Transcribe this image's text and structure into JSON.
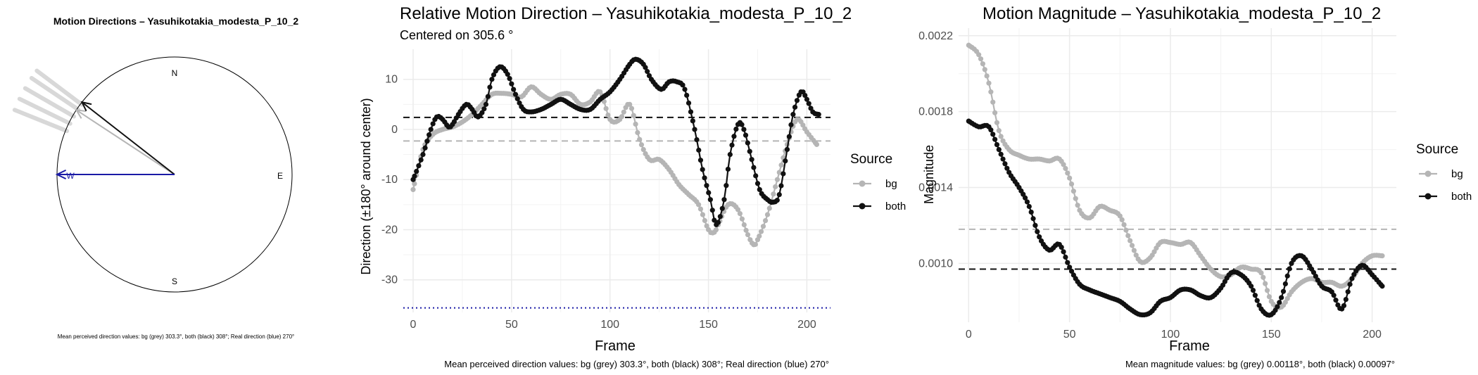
{
  "colors": {
    "bg_series": "#b5b5b5",
    "both_series": "#111111",
    "real_direction": "#1a1aa6",
    "grid": "#ebebeb",
    "compass_ray": "#d8d8d8"
  },
  "chart_data": [
    {
      "type": "compass",
      "title": "Motion Directions – Yasuhikotakia_modesta_P_10_2",
      "cardinals": {
        "n": "N",
        "e": "E",
        "s": "S",
        "w": "W"
      },
      "footer": "Mean perceived direction values: bg (grey) 303.3°, both (black) 308°; Real direction (blue) 270°",
      "mean_bg_deg": 303.3,
      "mean_both_deg": 308,
      "real_deg": 270,
      "rays_deg": [
        292,
        296,
        300,
        304,
        307
      ]
    },
    {
      "type": "line",
      "title": "Relative Motion Direction – Yasuhikotakia_modesta_P_10_2",
      "subtitle": "Centered on  305.6 °",
      "xlabel": "Frame",
      "ylabel": "Direction (±180° around center)",
      "xlim": [
        -5,
        212
      ],
      "ylim": [
        -36.5,
        16
      ],
      "xticks": [
        0,
        50,
        100,
        150,
        200
      ],
      "yticks": [
        10,
        0,
        -10,
        -20,
        -30
      ],
      "legend_title": "Source",
      "legend_position": "right",
      "hlines": [
        {
          "y": 2.4,
          "style": "dashed",
          "series": "both"
        },
        {
          "y": -2.3,
          "style": "dashed",
          "series": "bg"
        },
        {
          "y": -35.6,
          "style": "dotted",
          "series": "real"
        }
      ],
      "footer": "Mean perceived direction values: bg (grey) 303.3°, both (black) 308°; Real direction (blue) 270°",
      "series": [
        {
          "name": "bg",
          "x": [
            0,
            5,
            10,
            15,
            20,
            25,
            30,
            35,
            40,
            45,
            50,
            55,
            60,
            65,
            70,
            75,
            80,
            85,
            90,
            95,
            100,
            105,
            110,
            115,
            120,
            125,
            130,
            135,
            140,
            145,
            150,
            153,
            155,
            160,
            165,
            170,
            173,
            175,
            180,
            185,
            190,
            195,
            200,
            205
          ],
          "y": [
            -12,
            -4,
            -1,
            0,
            0.5,
            1.5,
            3,
            5,
            7,
            7.2,
            7,
            6.5,
            8.5,
            7,
            6,
            7,
            7,
            5,
            5.5,
            7.5,
            2,
            2,
            5,
            -2,
            -6,
            -6,
            -8,
            -11,
            -13,
            -15,
            -20,
            -20.5,
            -19,
            -15,
            -16,
            -21,
            -23,
            -22,
            -17,
            -10,
            -3,
            2,
            -0.5,
            -3
          ]
        },
        {
          "name": "both",
          "x": [
            0,
            5,
            9,
            12,
            15,
            18,
            20,
            23,
            27,
            30,
            33,
            37,
            40,
            44,
            48,
            52,
            56,
            60,
            65,
            70,
            75,
            80,
            85,
            90,
            95,
            100,
            105,
            110,
            113,
            117,
            121,
            126,
            130,
            134,
            138,
            143,
            147,
            151,
            154,
            158,
            161,
            165,
            168,
            172,
            176,
            180,
            183,
            186,
            190,
            193,
            197,
            200,
            203,
            206
          ],
          "y": [
            -10,
            -5,
            0,
            2.5,
            2,
            0.5,
            1,
            3,
            5,
            4,
            2.5,
            5,
            10,
            12.5,
            11,
            7,
            4,
            3.5,
            4,
            5,
            6,
            5,
            4,
            4,
            6,
            7.5,
            10,
            13,
            14,
            13,
            10,
            8,
            9.5,
            9.5,
            8,
            0,
            -8,
            -14,
            -19,
            -14,
            -5,
            1,
            0,
            -6,
            -12,
            -14,
            -14.5,
            -13,
            -4,
            3,
            7.5,
            6,
            3.5,
            3
          ]
        }
      ]
    },
    {
      "type": "line",
      "title": "Motion Magnitude – Yasuhikotakia_modesta_P_10_2",
      "xlabel": "Frame",
      "ylabel": "Magnitude",
      "xlim": [
        -5,
        212
      ],
      "ylim": [
        0.00069,
        0.00224
      ],
      "xticks": [
        0,
        50,
        100,
        150,
        200
      ],
      "yticks": [
        0.0022,
        0.0018,
        0.0014,
        0.001
      ],
      "ytick_labels": [
        "0.0022",
        "0.0018",
        "0.0014",
        "0.0010"
      ],
      "legend_title": "Source",
      "legend_position": "right",
      "hlines": [
        {
          "y": 0.00118,
          "style": "dashed",
          "series": "bg"
        },
        {
          "y": 0.00097,
          "style": "dashed",
          "series": "both"
        }
      ],
      "footer": "Mean magnitude values: bg (grey) 0.00118°, both (black) 0.00097°",
      "series": [
        {
          "name": "bg",
          "x": [
            0,
            5,
            10,
            15,
            20,
            25,
            30,
            35,
            40,
            45,
            50,
            55,
            60,
            65,
            70,
            75,
            80,
            85,
            90,
            95,
            100,
            105,
            110,
            115,
            120,
            125,
            130,
            135,
            140,
            145,
            150,
            155,
            160,
            165,
            170,
            175,
            180,
            185,
            190,
            195,
            200,
            205
          ],
          "y": [
            0.00215,
            0.0021,
            0.00195,
            0.0017,
            0.0016,
            0.00157,
            0.00155,
            0.00155,
            0.00154,
            0.00155,
            0.00145,
            0.00128,
            0.00124,
            0.0013,
            0.00128,
            0.00125,
            0.00112,
            0.00101,
            0.00103,
            0.00111,
            0.00111,
            0.0011,
            0.00111,
            0.00104,
            0.00097,
            0.00093,
            0.00094,
            0.00098,
            0.00097,
            0.00095,
            0.0008,
            0.00077,
            0.00085,
            0.0009,
            0.00092,
            0.0009,
            0.0009,
            0.00088,
            0.00092,
            0.001,
            0.00104,
            0.00104
          ]
        },
        {
          "name": "both",
          "x": [
            0,
            5,
            10,
            15,
            20,
            25,
            30,
            35,
            40,
            45,
            50,
            55,
            60,
            65,
            70,
            75,
            80,
            85,
            90,
            95,
            100,
            105,
            110,
            115,
            120,
            125,
            130,
            135,
            140,
            145,
            150,
            155,
            160,
            165,
            170,
            175,
            180,
            185,
            190,
            195,
            200,
            205
          ],
          "y": [
            0.00175,
            0.00172,
            0.00172,
            0.0016,
            0.00148,
            0.0014,
            0.0013,
            0.00114,
            0.00107,
            0.0011,
            0.00098,
            0.00089,
            0.00086,
            0.00084,
            0.00082,
            0.0008,
            0.00076,
            0.00073,
            0.00074,
            0.0008,
            0.00082,
            0.00086,
            0.00086,
            0.00083,
            0.00082,
            0.00087,
            0.00095,
            0.00094,
            0.00088,
            0.00076,
            0.00073,
            0.00082,
            0.001,
            0.00104,
            0.00097,
            0.00088,
            0.00085,
            0.00076,
            0.00092,
            0.00099,
            0.00094,
            0.00088
          ]
        }
      ]
    }
  ]
}
